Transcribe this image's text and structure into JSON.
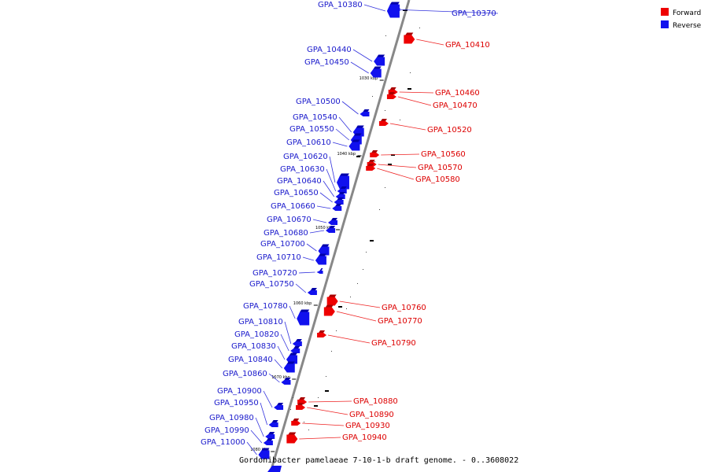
{
  "title": "Gordonibacter pamelaeae 7-10-1-b draft genome. - 0..3608022",
  "legend": [
    {
      "label": "Forward",
      "color": "#ee0000"
    },
    {
      "label": "Reverse",
      "color": "#1111ee"
    }
  ],
  "colors": {
    "forward": "#ee0000",
    "forward_dark": "#aa0000",
    "forward_line": "#ee2222",
    "reverse": "#1111ee",
    "reverse_dark": "#0000aa",
    "reverse_line": "#3333dd",
    "backbone": "#888888"
  },
  "ticks": [
    "1030 kbp",
    "1040 kbp",
    "1050 kbp",
    "1060 kbp",
    "1070 kbp",
    "1080 kbp"
  ],
  "genes": [
    {
      "id": "GPA_10370",
      "strand": "reverse",
      "size": "tiny"
    },
    {
      "id": "GPA_10380",
      "strand": "reverse",
      "size": "big"
    },
    {
      "id": "GPA_10410",
      "strand": "forward",
      "size": "mid"
    },
    {
      "id": "GPA_10440",
      "strand": "reverse",
      "size": "mid"
    },
    {
      "id": "GPA_10450",
      "strand": "reverse",
      "size": "mid"
    },
    {
      "id": "GPA_10460",
      "strand": "forward",
      "size": "small"
    },
    {
      "id": "GPA_10470",
      "strand": "forward",
      "size": "small"
    },
    {
      "id": "GPA_10500",
      "strand": "reverse",
      "size": "small"
    },
    {
      "id": "GPA_10520",
      "strand": "forward",
      "size": "small"
    },
    {
      "id": "GPA_10540",
      "strand": "reverse",
      "size": "mid"
    },
    {
      "id": "GPA_10550",
      "strand": "reverse",
      "size": "mid"
    },
    {
      "id": "GPA_10560",
      "strand": "forward",
      "size": "small"
    },
    {
      "id": "GPA_10570",
      "strand": "forward",
      "size": "small"
    },
    {
      "id": "GPA_10580",
      "strand": "forward",
      "size": "small"
    },
    {
      "id": "GPA_10610",
      "strand": "reverse",
      "size": "mid"
    },
    {
      "id": "GPA_10620",
      "strand": "reverse",
      "size": "big"
    },
    {
      "id": "GPA_10630",
      "strand": "reverse",
      "size": "small"
    },
    {
      "id": "GPA_10640",
      "strand": "reverse",
      "size": "small"
    },
    {
      "id": "GPA_10650",
      "strand": "reverse",
      "size": "small"
    },
    {
      "id": "GPA_10660",
      "strand": "reverse",
      "size": "small"
    },
    {
      "id": "GPA_10670",
      "strand": "reverse",
      "size": "small"
    },
    {
      "id": "GPA_10680",
      "strand": "reverse",
      "size": "small"
    },
    {
      "id": "GPA_10700",
      "strand": "reverse",
      "size": "mid"
    },
    {
      "id": "GPA_10710",
      "strand": "reverse",
      "size": "mid"
    },
    {
      "id": "GPA_10720",
      "strand": "reverse",
      "size": "tiny"
    },
    {
      "id": "GPA_10750",
      "strand": "reverse",
      "size": "small"
    },
    {
      "id": "GPA_10760",
      "strand": "forward",
      "size": "mid"
    },
    {
      "id": "GPA_10770",
      "strand": "forward",
      "size": "mid"
    },
    {
      "id": "GPA_10780",
      "strand": "reverse",
      "size": "big"
    },
    {
      "id": "GPA_10790",
      "strand": "forward",
      "size": "small"
    },
    {
      "id": "GPA_10810",
      "strand": "reverse",
      "size": "small"
    },
    {
      "id": "GPA_10820",
      "strand": "reverse",
      "size": "small"
    },
    {
      "id": "GPA_10830",
      "strand": "reverse",
      "size": "mid"
    },
    {
      "id": "GPA_10840",
      "strand": "reverse",
      "size": "mid"
    },
    {
      "id": "GPA_10860",
      "strand": "reverse",
      "size": "small"
    },
    {
      "id": "GPA_10880",
      "strand": "forward",
      "size": "small"
    },
    {
      "id": "GPA_10890",
      "strand": "forward",
      "size": "small"
    },
    {
      "id": "GPA_10900",
      "strand": "reverse",
      "size": "small"
    },
    {
      "id": "GPA_10930",
      "strand": "forward",
      "size": "small"
    },
    {
      "id": "GPA_10940",
      "strand": "forward",
      "size": "mid"
    },
    {
      "id": "GPA_10950",
      "strand": "reverse",
      "size": "small"
    },
    {
      "id": "GPA_10980",
      "strand": "reverse",
      "size": "small"
    },
    {
      "id": "GPA_10990",
      "strand": "reverse",
      "size": "small"
    },
    {
      "id": "GPA_11000",
      "strand": "reverse",
      "size": "mid"
    }
  ]
}
